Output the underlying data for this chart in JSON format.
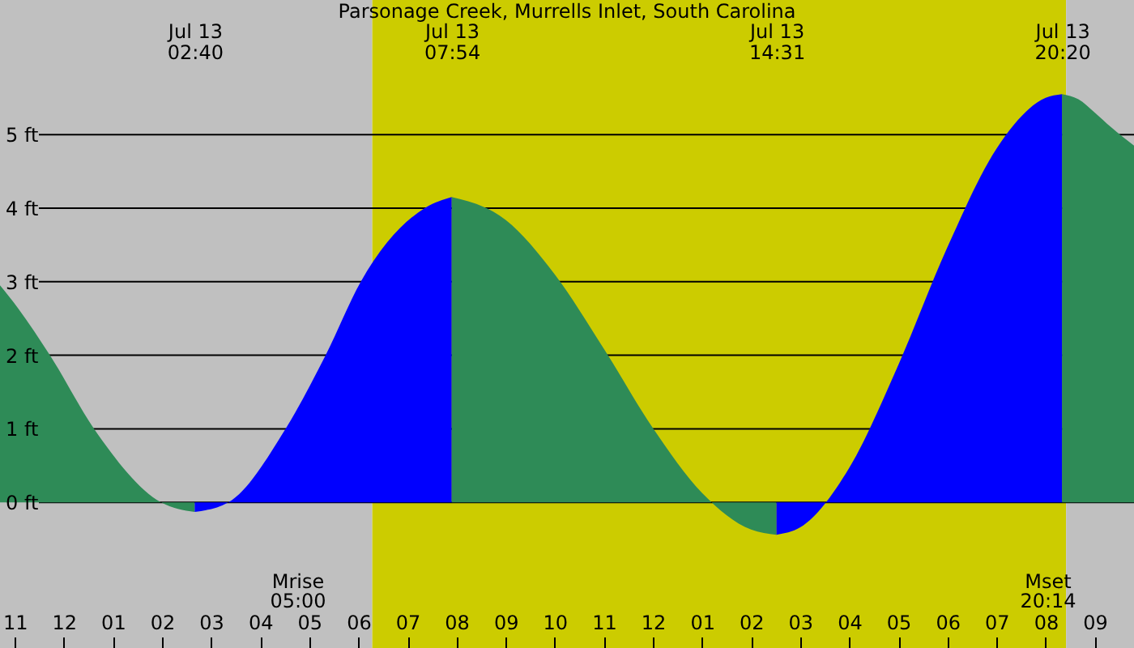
{
  "chart_data": {
    "type": "area",
    "title": "Parsonage Creek, Murrells Inlet, South Carolina",
    "x": [
      "--07-12T22:42",
      "--07-12T23:04",
      "--07-12T23:43",
      "--07-13T00:37",
      "--07-13T01:59",
      "--07-13T02:40",
      "--07-13T03:21",
      "--07-13T04:31",
      "--07-13T05:20",
      "--07-13T06:03",
      "--07-13T07:21",
      "--07-13T07:54",
      "--07-13T09:00",
      "--07-13T10:00",
      "--07-13T11:00",
      "--07-13T12:00",
      "--07-13T13:00",
      "--07-13T14:00",
      "--07-13T14:31",
      "--07-13T15:00",
      "--07-13T16:00",
      "--07-13T17:00",
      "--07-13T18:00",
      "--07-13T19:00",
      "--07-13T20:00",
      "--07-13T20:20",
      "--07-13T20:40",
      "--07-13T21:00",
      "--07-13T21:20",
      "--07-13T21:48"
    ],
    "series": [
      {
        "color": "#2e8b57",
        "values": [
          2.95,
          2.64,
          2.0,
          1.0,
          0.0,
          -0.13,
          null,
          null,
          null,
          null,
          null,
          4.15,
          3.84,
          3.1,
          2.09,
          1.01,
          0.13,
          -0.37,
          -0.44,
          null,
          null,
          null,
          null,
          null,
          null,
          5.55,
          5.48,
          5.3,
          5.1,
          4.85
        ]
      },
      {
        "color": "#0000ff",
        "values": [
          null,
          null,
          null,
          null,
          null,
          -0.13,
          0.0,
          1.0,
          2.0,
          3.0,
          4.0,
          4.15,
          null,
          null,
          null,
          null,
          null,
          null,
          -0.44,
          -0.34,
          0.47,
          1.87,
          3.47,
          4.81,
          5.5,
          5.55,
          null,
          null,
          null,
          null
        ]
      }
    ],
    "xlim": [
      "--07-12T22:42",
      "--07-13T21:48"
    ],
    "xticks": [
      {
        "value": "--07-12T23:00",
        "label": "11"
      },
      {
        "value": "--07-13T00:00",
        "label": "12"
      },
      {
        "value": "--07-13T01:00",
        "label": "01"
      },
      {
        "value": "--07-13T02:00",
        "label": "02"
      },
      {
        "value": "--07-13T03:00",
        "label": "03"
      },
      {
        "value": "--07-13T04:00",
        "label": "04"
      },
      {
        "value": "--07-13T05:00",
        "label": "05"
      },
      {
        "value": "--07-13T06:00",
        "label": "06"
      },
      {
        "value": "--07-13T07:00",
        "label": "07"
      },
      {
        "value": "--07-13T08:00",
        "label": "08"
      },
      {
        "value": "--07-13T09:00",
        "label": "09"
      },
      {
        "value": "--07-13T10:00",
        "label": "10"
      },
      {
        "value": "--07-13T11:00",
        "label": "11"
      },
      {
        "value": "--07-13T12:00",
        "label": "12"
      },
      {
        "value": "--07-13T13:00",
        "label": "01"
      },
      {
        "value": "--07-13T14:00",
        "label": "02"
      },
      {
        "value": "--07-13T15:00",
        "label": "03"
      },
      {
        "value": "--07-13T16:00",
        "label": "04"
      },
      {
        "value": "--07-13T17:00",
        "label": "05"
      },
      {
        "value": "--07-13T18:00",
        "label": "06"
      },
      {
        "value": "--07-13T19:00",
        "label": "07"
      },
      {
        "value": "--07-13T20:00",
        "label": "08"
      },
      {
        "value": "--07-13T21:00",
        "label": "09"
      }
    ],
    "x2lim": [
      "--07-12T22:42",
      "--07-13T21:48"
    ],
    "x2ticks": [
      {
        "value": "--07-13T02:40",
        "label": "Jul 13\n02:40"
      },
      {
        "value": "--07-13T07:54",
        "label": "Jul 13\n07:54"
      },
      {
        "value": "--07-13T14:31",
        "label": "Jul 13\n14:31"
      },
      {
        "value": "--07-13T20:20",
        "label": "Jul 13\n20:20"
      }
    ],
    "ylim": [
      -1.98,
      6.83
    ],
    "yticks": [
      {
        "value": 0,
        "label": "0 ft"
      },
      {
        "value": 1,
        "label": "1 ft"
      },
      {
        "value": 2,
        "label": "2 ft"
      },
      {
        "value": 3,
        "label": "3 ft"
      },
      {
        "value": 4,
        "label": "4 ft"
      },
      {
        "value": 5,
        "label": "5 ft"
      }
    ],
    "grid": "y",
    "bands": [
      {
        "axis": "x",
        "from": "--07-12T22:42",
        "to": "--07-13T06:17",
        "color": "#c0c0c0"
      },
      {
        "axis": "x",
        "from": "--07-13T06:17",
        "to": "--07-13T20:25",
        "color": "#cccc00"
      },
      {
        "axis": "x",
        "from": "--07-13T20:25",
        "to": "--07-13T21:48",
        "color": "#c0c0c0"
      }
    ],
    "annotations": [
      "Mrise\n05:00",
      "Mset\n20:14"
    ]
  }
}
